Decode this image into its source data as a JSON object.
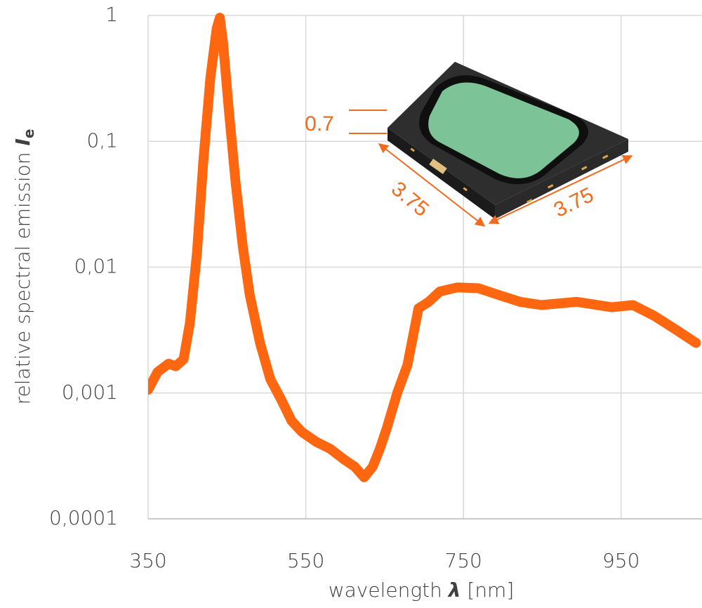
{
  "chart_data": {
    "type": "line",
    "x_label": "wavelength",
    "x_label_symbol": "λ",
    "x_label_unit": "[nm]",
    "y_label": "relative spectral emission",
    "y_label_symbol": "I",
    "y_label_subscript": "e",
    "annotations": [
      "0.7",
      "3.75",
      "3.75"
    ],
    "x": [
      350,
      362,
      376,
      385,
      395,
      403,
      412,
      420,
      429,
      437,
      441,
      445,
      452,
      461,
      470,
      479,
      492,
      505,
      519,
      532,
      545,
      563,
      581,
      599,
      612,
      624,
      635,
      644,
      653,
      666,
      679,
      693,
      706,
      720,
      742,
      769,
      795,
      822,
      849,
      894,
      938,
      965,
      992,
      1019,
      1045
    ],
    "values": [
      0.00106,
      0.00147,
      0.00171,
      0.00163,
      0.00185,
      0.0036,
      0.013,
      0.069,
      0.32,
      0.79,
      0.96,
      0.61,
      0.19,
      0.047,
      0.0148,
      0.006,
      0.0025,
      0.00129,
      0.00088,
      0.0006,
      0.00049,
      0.00041,
      0.00036,
      0.000295,
      0.00026,
      0.000214,
      0.00026,
      0.00036,
      0.00053,
      0.001,
      0.00167,
      0.0047,
      0.0053,
      0.0064,
      0.0069,
      0.0068,
      0.006,
      0.0053,
      0.005,
      0.0053,
      0.0048,
      0.005,
      0.0041,
      0.0032,
      0.0025
    ],
    "color": "#ff6610",
    "xlim": [
      350,
      1050
    ],
    "xticks": [
      350,
      550,
      750,
      950
    ],
    "ylim": [
      0.0001,
      1
    ],
    "y_log_scale": true,
    "yticks": [
      {
        "value": 0.0001,
        "label": "0,0001"
      },
      {
        "value": 0.001,
        "label": "0,001"
      },
      {
        "value": 0.01,
        "label": "0,01"
      },
      {
        "value": 0.1,
        "label": "0,1"
      },
      1
    ],
    "grid": true
  }
}
